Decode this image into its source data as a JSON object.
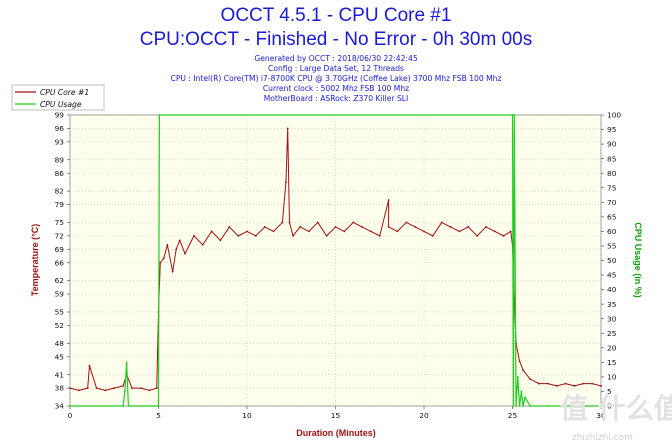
{
  "header": {
    "title": "OCCT 4.5.1 - CPU Core #1",
    "subtitle": "CPU:OCCT - Finished - No Error - 0h 30m 00s",
    "info_lines": [
      "Generated by OCCT : 2018/06/30 22:42:45",
      "Config : Large Data Set, 12 Threads",
      "CPU : Intel(R) Core(TM) i7-8700K CPU @ 3.70GHz (Coffee Lake) 3700 Mhz FSB 100 Mhz",
      "Current clock : 5002 Mhz FSB 100 Mhz",
      "MotherBoard : ASRock: Z370 Killer SLI"
    ]
  },
  "legend": {
    "items": [
      {
        "label": "CPU Core #1",
        "color": "#a01010"
      },
      {
        "label": "CPU Usage",
        "color": "#22cc22"
      }
    ]
  },
  "watermark": {
    "small": "值 什么值得买",
    "domain": "zhizhizhi.com"
  },
  "chart_data": {
    "type": "line",
    "title": "OCCT 4.5.1 - CPU Core #1",
    "xlabel": "Duration (Minutes)",
    "ylabel_left": "Temperature (°C)",
    "ylabel_right": "CPU Usage (in %)",
    "xlim": [
      0,
      30
    ],
    "ylim_left": [
      34,
      99
    ],
    "ylim_right": [
      0,
      100
    ],
    "x_ticks": [
      0,
      5,
      10,
      15,
      20,
      25,
      30
    ],
    "y_ticks_left": [
      34,
      38,
      41,
      45,
      48,
      52,
      55,
      59,
      62,
      66,
      69,
      72,
      75,
      79,
      82,
      86,
      89,
      93,
      96,
      99
    ],
    "y_ticks_right": [
      0,
      5,
      10,
      15,
      20,
      25,
      30,
      35,
      40,
      45,
      50,
      55,
      60,
      65,
      70,
      75,
      80,
      85,
      90,
      95,
      100
    ],
    "grid": true,
    "legend_position": "top-left",
    "background": "#ffffee",
    "series": [
      {
        "name": "CPU Core #1",
        "axis": "left",
        "color": "#a01010",
        "x": [
          0,
          0.5,
          1,
          1.1,
          1.5,
          2,
          2.5,
          3,
          3.2,
          3.5,
          4,
          4.5,
          4.9,
          5.0,
          5.1,
          5.3,
          5.5,
          5.8,
          6,
          6.2,
          6.5,
          7,
          7.5,
          8,
          8.5,
          9,
          9.5,
          10,
          10.5,
          11,
          11.5,
          12,
          12.2,
          12.3,
          12.4,
          12.6,
          13,
          13.5,
          14,
          14.5,
          15,
          15.5,
          16,
          16.5,
          17,
          17.5,
          18,
          18,
          18.5,
          19,
          19.5,
          20,
          20.5,
          21,
          21.5,
          22,
          22.5,
          23,
          23.5,
          24,
          24.5,
          24.9,
          25.0,
          25.1,
          25.2,
          25.4,
          25.6,
          26,
          26.5,
          27,
          27.5,
          28,
          28.5,
          29,
          29.5,
          30
        ],
        "y": [
          38,
          37.5,
          38,
          43,
          38,
          37.5,
          38,
          38.5,
          41,
          38,
          38,
          37.5,
          38,
          55,
          66,
          67,
          70,
          64,
          69,
          71,
          68,
          72,
          70,
          73,
          71,
          74,
          72,
          73,
          72,
          74,
          73,
          75,
          84,
          96,
          75,
          72,
          74,
          73,
          75,
          72,
          74,
          73,
          75,
          74,
          73,
          72,
          80,
          74,
          73,
          75,
          74,
          73,
          72,
          75,
          74,
          73,
          74,
          72,
          74,
          73,
          72,
          73,
          70,
          58,
          48,
          44,
          42,
          40,
          39,
          39,
          38.5,
          39,
          38.5,
          39,
          39,
          38.5
        ]
      },
      {
        "name": "CPU Usage",
        "axis": "right",
        "color": "#22cc22",
        "x": [
          0,
          3.0,
          3.1,
          3.2,
          3.3,
          5.0,
          5.05,
          25.0,
          25.05,
          25.1,
          25.2,
          25.3,
          25.4,
          25.5,
          25.6,
          25.7,
          26,
          27,
          28,
          29,
          30
        ],
        "y": [
          0,
          0,
          5,
          15,
          0,
          0,
          100,
          100,
          0,
          100,
          0,
          10,
          0,
          5,
          0,
          3,
          0,
          0,
          0,
          0,
          0
        ]
      }
    ]
  }
}
